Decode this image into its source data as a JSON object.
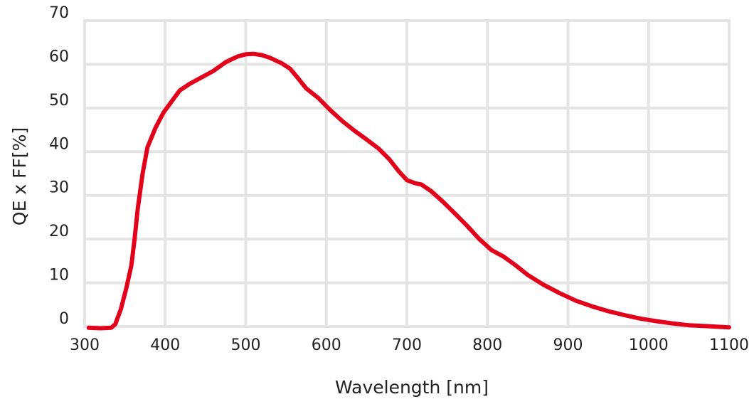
{
  "chart_data": {
    "type": "line",
    "title": "",
    "xlabel": "Wavelength [nm]",
    "ylabel": "QE x FF[%]",
    "xlim": [
      300,
      1100
    ],
    "ylim": [
      0,
      70
    ],
    "x_ticks": [
      300,
      400,
      500,
      600,
      700,
      800,
      900,
      1000,
      1100
    ],
    "y_ticks": [
      0,
      10,
      20,
      30,
      40,
      50,
      60,
      70
    ],
    "grid": true,
    "legend": "none",
    "series": [
      {
        "color": "#e2001a",
        "x": [
          305,
          320,
          333,
          338,
          345,
          352,
          358,
          362,
          366,
          372,
          378,
          388,
          398,
          408,
          418,
          430,
          445,
          460,
          475,
          490,
          500,
          510,
          520,
          530,
          545,
          555,
          565,
          575,
          590,
          605,
          620,
          635,
          650,
          665,
          678,
          690,
          700,
          710,
          718,
          730,
          745,
          760,
          775,
          790,
          805,
          820,
          835,
          850,
          870,
          890,
          910,
          930,
          950,
          970,
          990,
          1010,
          1030,
          1050,
          1070,
          1090,
          1100
        ],
        "y": [
          -0.3,
          -0.4,
          -0.3,
          0.5,
          4,
          9,
          14,
          20,
          27,
          35,
          41,
          45.5,
          49,
          51.5,
          54,
          55.5,
          57,
          58.5,
          60.5,
          61.8,
          62.3,
          62.4,
          62.1,
          61.5,
          60.2,
          59,
          56.8,
          54.5,
          52.3,
          49.5,
          47,
          44.8,
          42.8,
          40.7,
          38.3,
          35.5,
          33.5,
          32.8,
          32.5,
          31,
          28.5,
          25.8,
          23,
          20,
          17.5,
          16,
          14,
          11.8,
          9.5,
          7.6,
          5.9,
          4.6,
          3.5,
          2.6,
          1.8,
          1.2,
          0.7,
          0.3,
          0.1,
          -0.1,
          -0.2
        ]
      }
    ]
  }
}
